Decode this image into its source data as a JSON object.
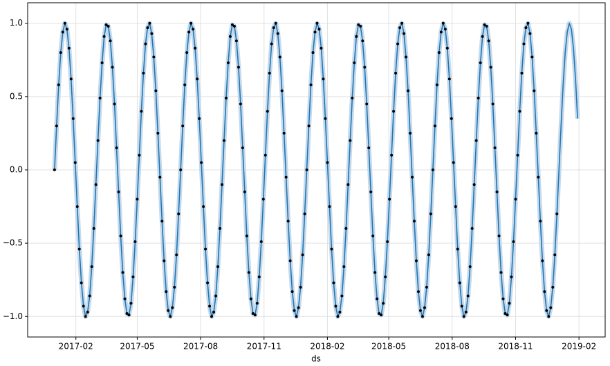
{
  "chart_data": {
    "type": "line",
    "xlabel": "ds",
    "x": [
      0,
      3,
      6,
      9,
      12,
      15,
      18,
      21,
      24,
      27,
      30,
      33,
      36,
      39,
      42,
      45,
      48,
      51,
      54,
      57,
      60,
      63,
      66,
      69,
      72,
      75,
      78,
      81,
      84,
      87,
      90,
      93,
      96,
      99,
      102,
      105,
      108,
      111,
      114,
      117,
      120,
      123,
      126,
      129,
      132,
      135,
      138,
      141,
      144,
      147,
      150,
      153,
      156,
      159,
      162,
      165,
      168,
      171,
      174,
      177,
      180,
      183,
      186,
      189,
      192,
      195,
      198,
      201,
      204,
      207,
      210,
      213,
      216,
      219,
      222,
      225,
      228,
      231,
      234,
      237,
      240,
      243,
      246,
      249,
      252,
      255,
      258,
      261,
      264,
      267,
      270,
      273,
      276,
      279,
      282,
      285,
      288,
      291,
      294,
      297,
      300,
      303,
      306,
      309,
      312,
      315,
      318,
      321,
      324,
      327,
      330,
      333,
      336,
      339,
      342,
      345,
      348,
      351,
      354,
      357,
      360,
      363,
      366,
      369,
      372,
      375,
      378,
      381,
      384,
      387,
      390,
      393,
      396,
      399,
      402,
      405,
      408,
      411,
      414,
      417,
      420,
      423,
      426,
      429,
      432,
      435,
      438,
      441,
      444,
      447,
      450,
      453,
      456,
      459,
      462,
      465,
      468,
      471,
      474,
      477,
      480,
      483,
      486,
      489,
      492,
      495,
      498,
      501,
      504,
      507,
      510,
      513,
      516,
      519,
      522,
      525,
      528,
      531,
      534,
      537,
      540,
      543,
      546,
      549,
      552,
      555,
      558,
      561,
      564,
      567,
      570,
      573,
      576,
      579,
      582,
      585,
      588,
      591,
      594,
      597,
      600,
      603,
      606,
      609,
      612,
      615,
      618,
      621,
      624,
      627,
      630,
      633,
      636,
      639,
      642,
      645,
      648,
      651,
      654,
      657,
      660,
      663,
      666,
      669,
      672,
      675,
      678,
      681,
      684,
      687,
      690,
      693,
      696,
      699,
      702,
      705,
      708,
      711,
      714,
      717,
      720,
      723,
      726,
      729,
      732,
      735,
      738,
      741,
      744,
      747,
      750,
      753,
      756,
      759
    ],
    "series": [
      {
        "type": "scatter",
        "color": "#000000",
        "values": [
          0,
          0.3,
          0.58,
          0.8,
          0.94,
          1,
          0.96,
          0.83,
          0.62,
          0.35,
          0.05,
          -0.25,
          -0.54,
          -0.77,
          -0.93,
          -1,
          -0.97,
          -0.86,
          -0.66,
          -0.4,
          -0.1,
          0.2,
          0.49,
          0.73,
          0.91,
          0.99,
          0.98,
          0.88,
          0.7,
          0.45,
          0.15,
          -0.15,
          -0.45,
          -0.7,
          -0.88,
          -0.98,
          -0.99,
          -0.91,
          -0.73,
          -0.49,
          -0.2,
          0.1,
          0.4,
          0.66,
          0.86,
          0.97,
          1,
          0.93,
          0.77,
          0.54,
          0.25,
          -0.05,
          -0.35,
          -0.62,
          -0.83,
          -0.96,
          -1,
          -0.94,
          -0.8,
          -0.58,
          -0.3,
          0,
          0.3,
          0.58,
          0.8,
          0.94,
          1,
          0.96,
          0.83,
          0.62,
          0.35,
          0.05,
          -0.25,
          -0.54,
          -0.77,
          -0.93,
          -1,
          -0.97,
          -0.86,
          -0.66,
          -0.4,
          -0.1,
          0.2,
          0.49,
          0.73,
          0.91,
          0.99,
          0.98,
          0.88,
          0.7,
          0.45,
          0.15,
          -0.15,
          -0.45,
          -0.7,
          -0.88,
          -0.98,
          -0.99,
          -0.91,
          -0.73,
          -0.49,
          -0.2,
          0.1,
          0.4,
          0.66,
          0.86,
          0.97,
          1,
          0.93,
          0.77,
          0.54,
          0.25,
          -0.05,
          -0.35,
          -0.62,
          -0.83,
          -0.96,
          -1,
          -0.94,
          -0.8,
          -0.58,
          -0.3,
          0,
          0.3,
          0.58,
          0.8,
          0.94,
          1,
          0.96,
          0.83,
          0.62,
          0.35,
          0.05,
          -0.25,
          -0.54,
          -0.77,
          -0.93,
          -1,
          -0.97,
          -0.86,
          -0.66,
          -0.4,
          -0.1,
          0.2,
          0.49,
          0.73,
          0.91,
          0.99,
          0.98,
          0.88,
          0.7,
          0.45,
          0.15,
          -0.15,
          -0.45,
          -0.7,
          -0.88,
          -0.98,
          -0.99,
          -0.91,
          -0.73,
          -0.49,
          -0.2,
          0.1,
          0.4,
          0.66,
          0.86,
          0.97,
          1,
          0.93,
          0.77,
          0.54,
          0.25,
          -0.05,
          -0.35,
          -0.62,
          -0.83,
          -0.96,
          -1,
          -0.94,
          -0.8,
          -0.58,
          -0.3,
          0,
          0.3,
          0.58,
          0.8,
          0.94,
          1,
          0.96,
          0.83,
          0.62,
          0.35,
          0.05,
          -0.25,
          -0.54,
          -0.77,
          -0.93,
          -1,
          -0.97,
          -0.86,
          -0.66,
          -0.4,
          -0.1,
          0.2,
          0.49,
          0.73,
          0.91,
          0.99,
          0.98,
          0.88,
          0.7,
          0.45,
          0.15,
          -0.15,
          -0.45,
          -0.7,
          -0.88,
          -0.98,
          -0.99,
          -0.91,
          -0.73,
          -0.49,
          -0.2,
          0.1,
          0.4,
          0.66,
          0.86,
          0.97,
          1,
          0.93,
          0.77,
          0.54,
          0.25,
          -0.05,
          -0.35,
          -0.62,
          -0.83,
          -0.96,
          -1,
          -0.94,
          -0.8,
          -0.58,
          -0.3,
          null,
          null,
          null,
          null,
          null,
          null,
          null,
          null,
          null,
          null
        ]
      },
      {
        "type": "line",
        "color": "#1f77b4",
        "band_color": "#c5d9ec",
        "values": [
          0,
          0.3,
          0.58,
          0.8,
          0.94,
          1,
          0.96,
          0.83,
          0.62,
          0.35,
          0.05,
          -0.25,
          -0.54,
          -0.77,
          -0.93,
          -1,
          -0.97,
          -0.86,
          -0.66,
          -0.4,
          -0.1,
          0.2,
          0.49,
          0.73,
          0.91,
          0.99,
          0.98,
          0.88,
          0.7,
          0.45,
          0.15,
          -0.15,
          -0.45,
          -0.7,
          -0.88,
          -0.98,
          -0.99,
          -0.91,
          -0.73,
          -0.49,
          -0.2,
          0.1,
          0.4,
          0.66,
          0.86,
          0.97,
          1,
          0.93,
          0.77,
          0.54,
          0.25,
          -0.05,
          -0.35,
          -0.62,
          -0.83,
          -0.96,
          -1,
          -0.94,
          -0.8,
          -0.58,
          -0.3,
          0,
          0.3,
          0.58,
          0.8,
          0.94,
          1,
          0.96,
          0.83,
          0.62,
          0.35,
          0.05,
          -0.25,
          -0.54,
          -0.77,
          -0.93,
          -1,
          -0.97,
          -0.86,
          -0.66,
          -0.4,
          -0.1,
          0.2,
          0.49,
          0.73,
          0.91,
          0.99,
          0.98,
          0.88,
          0.7,
          0.45,
          0.15,
          -0.15,
          -0.45,
          -0.7,
          -0.88,
          -0.98,
          -0.99,
          -0.91,
          -0.73,
          -0.49,
          -0.2,
          0.1,
          0.4,
          0.66,
          0.86,
          0.97,
          1,
          0.93,
          0.77,
          0.54,
          0.25,
          -0.05,
          -0.35,
          -0.62,
          -0.83,
          -0.96,
          -1,
          -0.94,
          -0.8,
          -0.58,
          -0.3,
          0,
          0.3,
          0.58,
          0.8,
          0.94,
          1,
          0.96,
          0.83,
          0.62,
          0.35,
          0.05,
          -0.25,
          -0.54,
          -0.77,
          -0.93,
          -1,
          -0.97,
          -0.86,
          -0.66,
          -0.4,
          -0.1,
          0.2,
          0.49,
          0.73,
          0.91,
          0.99,
          0.98,
          0.88,
          0.7,
          0.45,
          0.15,
          -0.15,
          -0.45,
          -0.7,
          -0.88,
          -0.98,
          -0.99,
          -0.91,
          -0.73,
          -0.49,
          -0.2,
          0.1,
          0.4,
          0.66,
          0.86,
          0.97,
          1,
          0.93,
          0.77,
          0.54,
          0.25,
          -0.05,
          -0.35,
          -0.62,
          -0.83,
          -0.96,
          -1,
          -0.94,
          -0.8,
          -0.58,
          -0.3,
          0,
          0.3,
          0.58,
          0.8,
          0.94,
          1,
          0.96,
          0.83,
          0.62,
          0.35,
          0.05,
          -0.25,
          -0.54,
          -0.77,
          -0.93,
          -1,
          -0.97,
          -0.86,
          -0.66,
          -0.4,
          -0.1,
          0.2,
          0.49,
          0.73,
          0.91,
          0.99,
          0.98,
          0.88,
          0.7,
          0.45,
          0.15,
          -0.15,
          -0.45,
          -0.7,
          -0.88,
          -0.98,
          -0.99,
          -0.91,
          -0.73,
          -0.49,
          -0.2,
          0.1,
          0.4,
          0.66,
          0.86,
          0.97,
          1,
          0.93,
          0.77,
          0.54,
          0.25,
          -0.05,
          -0.35,
          -0.62,
          -0.83,
          -0.96,
          -1,
          -0.94,
          -0.8,
          -0.58,
          -0.3,
          0,
          0.3,
          0.58,
          0.8,
          0.94,
          1,
          0.96,
          0.83,
          0.62,
          0.35
        ]
      }
    ],
    "xlim": [
      -39,
      799
    ],
    "xticks": [
      {
        "value": 31,
        "label": "2017-02"
      },
      {
        "value": 120,
        "label": "2017-05"
      },
      {
        "value": 212,
        "label": "2017-08"
      },
      {
        "value": 304,
        "label": "2017-11"
      },
      {
        "value": 396,
        "label": "2018-02"
      },
      {
        "value": 485,
        "label": "2018-05"
      },
      {
        "value": 577,
        "label": "2018-08"
      },
      {
        "value": 669,
        "label": "2018-11"
      },
      {
        "value": 761,
        "label": "2019-02"
      }
    ],
    "ylim": [
      -1.14,
      1.14
    ],
    "yticks": [
      {
        "value": -1,
        "label": "−1.0"
      },
      {
        "value": -0.5,
        "label": "−0.5"
      },
      {
        "value": 0,
        "label": "0.0"
      },
      {
        "value": 0.5,
        "label": "0.5"
      },
      {
        "value": 1,
        "label": "1.0"
      }
    ],
    "grid": true
  }
}
